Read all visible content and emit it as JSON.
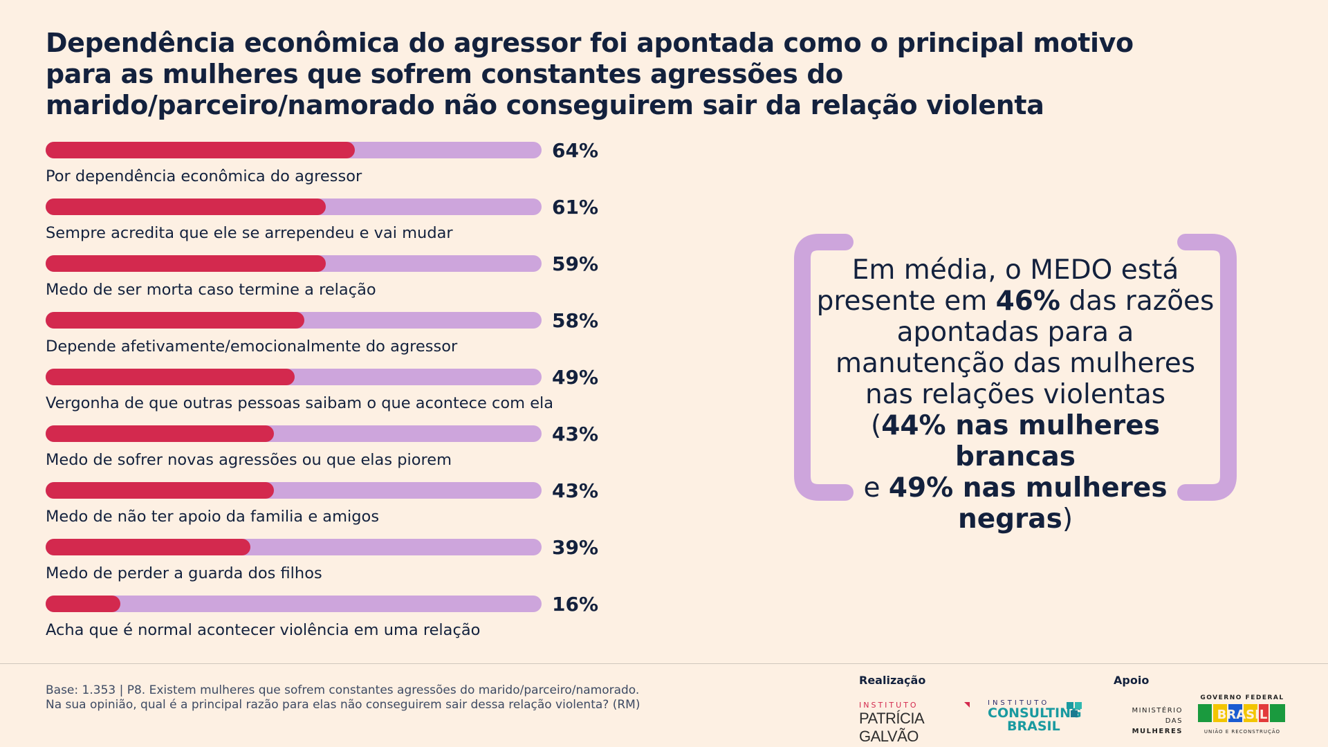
{
  "title": "Dependência econômica do agressor foi apontada como o principal motivo para as mulheres que sofrem constantes agressões do marido/parceiro/namorado não conseguirem sair da relação violenta",
  "colors": {
    "background": "#fdf0e3",
    "bar_fill": "#d3294e",
    "bar_track": "#cda5dc",
    "text": "#13213d",
    "bracket": "#cda5dc"
  },
  "chart_data": {
    "type": "bar",
    "orientation": "horizontal",
    "xlim": [
      0,
      100
    ],
    "unit": "%",
    "categories": [
      "Por dependência econômica do agressor",
      "Sempre acredita que ele se arrependeu e vai mudar",
      "Medo de ser morta caso termine a relação",
      "Depende afetivamente/emocionalmente do agressor",
      "Vergonha de que outras pessoas saibam o que acontece com ela",
      "Medo de sofrer novas agressões ou que elas piorem",
      "Medo de não ter apoio da familia e amigos",
      "Medo de perder a guarda dos filhos",
      "Acha que é normal acontecer violência em uma relação"
    ],
    "values": [
      64,
      61,
      59,
      58,
      49,
      43,
      43,
      39,
      16
    ],
    "value_labels": [
      "64%",
      "61%",
      "59%",
      "58%",
      "49%",
      "43%",
      "43%",
      "39%",
      "16%"
    ],
    "fill_fractions": [
      0.624,
      0.565,
      0.565,
      0.522,
      0.502,
      0.46,
      0.46,
      0.413,
      0.15
    ]
  },
  "callout": {
    "line1": "Em média, o MEDO está",
    "line2_pre": "presente em ",
    "line2_bold": "46%",
    "line2_post": " das razões",
    "line3": "apontadas para a",
    "line4": "manutenção das mulheres",
    "line5": "nas relações violentas",
    "line6_pre": "(",
    "line6_bold": "44% nas mulheres brancas",
    "line7_pre": "e ",
    "line7_bold": "49% nas mulheres negras",
    "line7_post": ")"
  },
  "footnote": {
    "line1": "Base: 1.353 | P8. Existem mulheres que sofrem constantes agressões do marido/parceiro/namorado.",
    "line2": "Na sua opinião, qual é a principal razão para elas não conseguirem sair dessa relação violenta? (RM)"
  },
  "footer": {
    "realizacao_label": "Realização",
    "apoio_label": "Apoio",
    "logo_pg_small": "INSTITUTO",
    "logo_pg_big": "PATRÍCIA GALVÃO",
    "logo_icb_small": "INSTITUTO",
    "logo_icb_big1": "CONSULTING",
    "logo_icb_big2": "BRASIL",
    "logo_mm_line1": "MINISTÉRIO DAS",
    "logo_mm_line2": "MULHERES",
    "logo_gf_top": "GOVERNO FEDERAL",
    "logo_gf_word": "BRASIL",
    "logo_gf_bottom": "UNIÃO E RECONSTRUÇÃO"
  }
}
